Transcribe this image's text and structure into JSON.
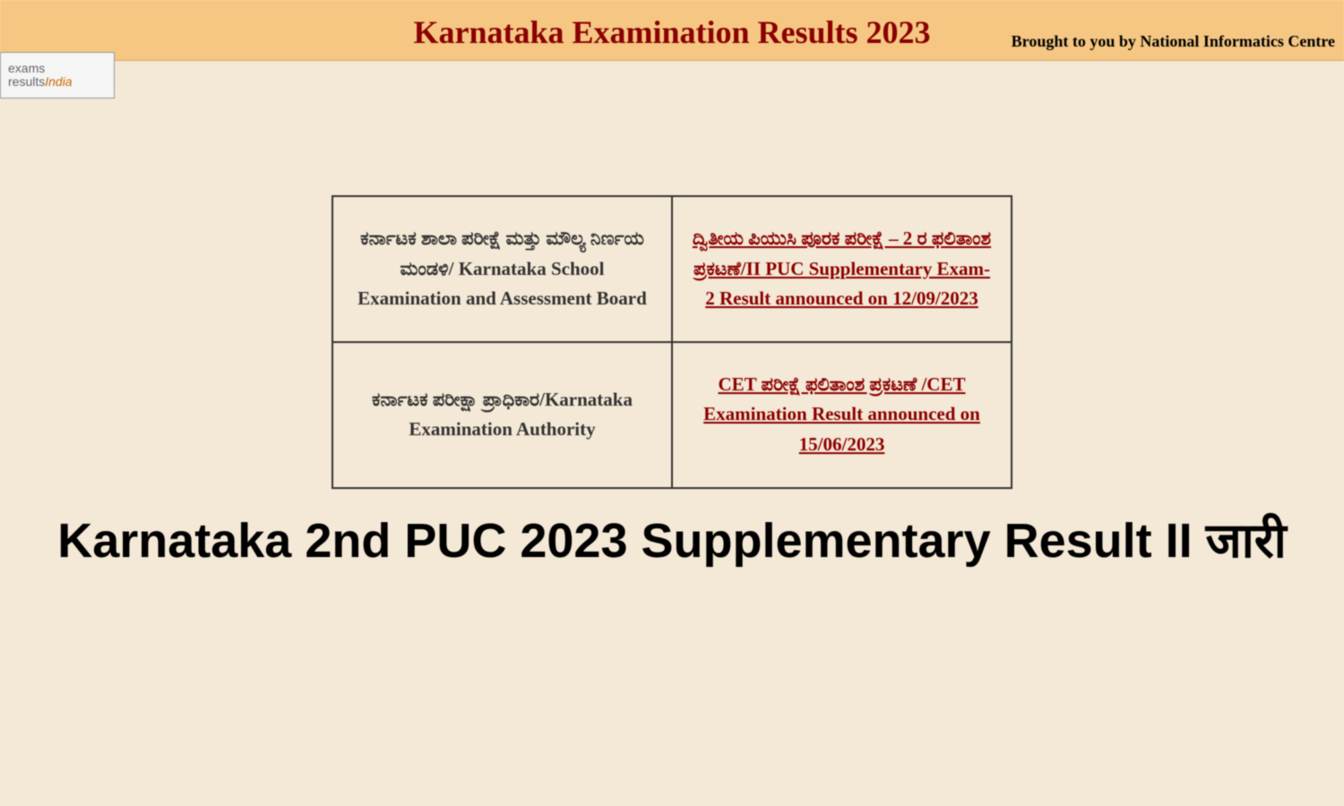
{
  "header": {
    "title": "Karnataka Examination Results 2023",
    "tagline": "Brought to you by National Informatics Centre",
    "logo": {
      "line1": "exams",
      "line2_prefix": "results",
      "line2_suffix": "India"
    }
  },
  "table": {
    "rows": [
      {
        "board": "ಕರ್ನಾಟಕ ಶಾಲಾ ಪರೀಕ್ಷೆ ಮತ್ತು ಮೌಲ್ಯ ನಿರ್ಣಯ ಮಂಡಳಿ/ Karnataka School Examination and Assessment Board",
        "link_text": "ದ್ವಿತೀಯ ಪಿಯುಸಿ ಪೂರಕ ಪರೀಕ್ಷೆ – 2 ರ ಫಲಿತಾಂಶ ಪ್ರಕಟಣೆ/II PUC Supplementary Exam-2 Result announced on 12/09/2023"
      },
      {
        "board": "ಕರ್ನಾಟಕ ಪರೀಕ್ಷಾ ಪ್ರಾಧಿಕಾರ/Karnataka Examination Authority",
        "link_text": "CET ಪರೀಕ್ಷೆ ಫಲಿತಾಂಶ ಪ್ರಕಟಣೆ /CET Examination Result announced on 15/06/2023"
      }
    ]
  },
  "bottom_heading": "Karnataka 2nd PUC 2023 Supplementary Result II जारी",
  "colors": {
    "background": "#f4e8d6",
    "banner_bg": "#f5c783",
    "title_color": "#8b0000",
    "link_color": "#8b0000",
    "text_color": "#333333",
    "border_color": "#333333"
  }
}
